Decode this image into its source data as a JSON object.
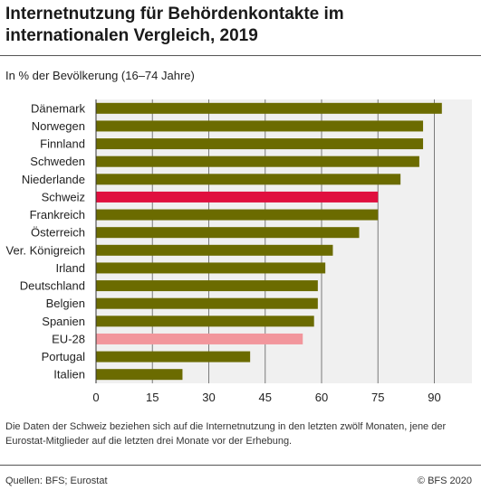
{
  "header": {
    "title": "Internetnutzung für Behördenkontakte im internationalen Vergleich, 2019",
    "subtitle": "In % der Bevölkerung (16–74 Jahre)"
  },
  "chart_data": {
    "type": "bar",
    "orientation": "horizontal",
    "categories": [
      "Dänemark",
      "Norwegen",
      "Finnland",
      "Schweden",
      "Niederlande",
      "Schweiz",
      "Frankreich",
      "Österreich",
      "Ver. Königreich",
      "Irland",
      "Deutschland",
      "Belgien",
      "Spanien",
      "EU-28",
      "Portugal",
      "Italien"
    ],
    "values": [
      92,
      87,
      87,
      86,
      81,
      75,
      75,
      70,
      63,
      61,
      59,
      59,
      58,
      55,
      41,
      23
    ],
    "xlim": [
      0,
      100
    ],
    "xticks": [
      0,
      15,
      30,
      45,
      60,
      75,
      90
    ],
    "grid": true,
    "colors": {
      "default": "#6b6b00",
      "Schweiz": "#e0103f",
      "EU-28": "#f2969c"
    }
  },
  "note": "Die Daten der Schweiz beziehen sich auf die Internetnutzung in den letzten zwölf Monaten, jene der Eurostat-Mitglieder auf die letzten drei Monate vor der Erhebung.",
  "footer": {
    "source": "Quellen: BFS; Eurostat",
    "copyright": "© BFS 2020"
  }
}
